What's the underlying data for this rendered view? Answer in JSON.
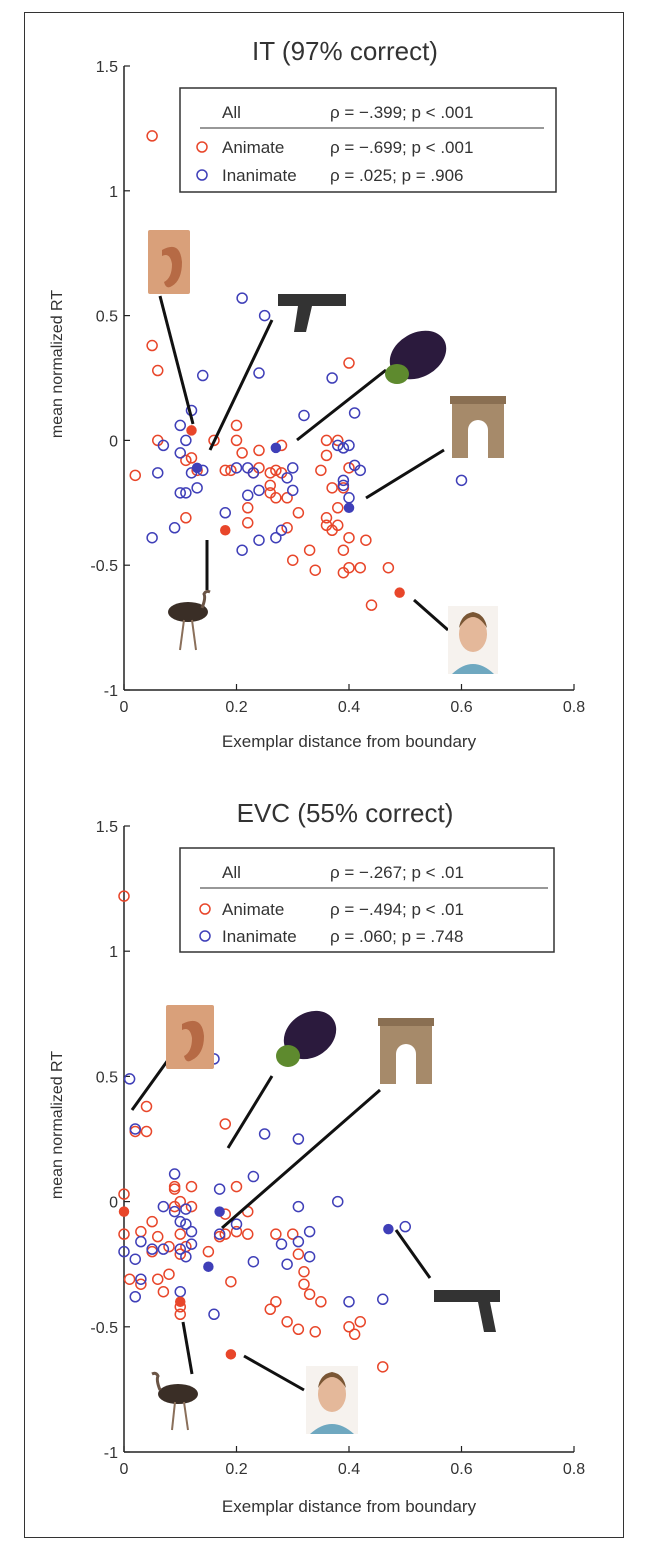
{
  "chart_data": [
    {
      "type": "scatter",
      "title": "IT (97% correct)",
      "xlabel": "Exemplar distance from boundary",
      "ylabel": "mean normalized RT",
      "xlim": [
        0,
        0.8
      ],
      "ylim": [
        -1,
        1.5
      ],
      "xticks": [
        "0",
        "0.2",
        "0.4",
        "0.6",
        "0.8"
      ],
      "yticks": [
        "1.5",
        "1",
        "0.5",
        "0",
        "-0.5",
        "-1"
      ],
      "grid": false,
      "legend": {
        "position": "top-right",
        "rows": [
          {
            "label": "All",
            "stat": "ρ = −.399; p < .001"
          },
          {
            "label": "Animate",
            "stat": "ρ = −.699; p < .001",
            "color": "#e8462a"
          },
          {
            "label": "Inanimate",
            "stat": "ρ = .025; p = .906",
            "color": "#3f3fb8"
          }
        ]
      },
      "series": [
        {
          "name": "Animate",
          "color": "#e8462a",
          "points": [
            [
              0.05,
              1.22
            ],
            [
              0.05,
              0.38
            ],
            [
              0.06,
              0.28
            ],
            [
              0.06,
              0.0
            ],
            [
              0.02,
              -0.14
            ],
            [
              0.11,
              -0.08
            ],
            [
              0.12,
              -0.07
            ],
            [
              0.11,
              -0.31
            ],
            [
              0.13,
              -0.12
            ],
            [
              0.16,
              0.0
            ],
            [
              0.18,
              -0.12
            ],
            [
              0.2,
              0.06
            ],
            [
              0.19,
              -0.12
            ],
            [
              0.2,
              0.0
            ],
            [
              0.21,
              -0.05
            ],
            [
              0.23,
              -0.13
            ],
            [
              0.22,
              -0.27
            ],
            [
              0.24,
              -0.11
            ],
            [
              0.22,
              -0.33
            ],
            [
              0.26,
              -0.13
            ],
            [
              0.26,
              -0.18
            ],
            [
              0.27,
              -0.12
            ],
            [
              0.28,
              -0.02
            ],
            [
              0.28,
              -0.13
            ],
            [
              0.27,
              -0.23
            ],
            [
              0.29,
              -0.23
            ],
            [
              0.3,
              -0.48
            ],
            [
              0.29,
              -0.35
            ],
            [
              0.31,
              -0.29
            ],
            [
              0.33,
              -0.44
            ],
            [
              0.34,
              -0.52
            ],
            [
              0.36,
              -0.34
            ],
            [
              0.36,
              -0.31
            ],
            [
              0.37,
              -0.36
            ],
            [
              0.38,
              -0.34
            ],
            [
              0.39,
              -0.44
            ],
            [
              0.4,
              -0.39
            ],
            [
              0.4,
              -0.51
            ],
            [
              0.39,
              -0.53
            ],
            [
              0.42,
              -0.51
            ],
            [
              0.43,
              -0.4
            ],
            [
              0.44,
              -0.66
            ],
            [
              0.47,
              -0.51
            ],
            [
              0.4,
              0.31
            ],
            [
              0.38,
              0.0
            ],
            [
              0.36,
              0.0
            ],
            [
              0.36,
              -0.06
            ],
            [
              0.35,
              -0.12
            ],
            [
              0.37,
              -0.19
            ],
            [
              0.39,
              -0.19
            ],
            [
              0.4,
              -0.11
            ],
            [
              0.38,
              -0.27
            ],
            [
              0.24,
              -0.04
            ],
            [
              0.26,
              -0.21
            ]
          ]
        },
        {
          "name": "Inanimate",
          "color": "#3f3fb8",
          "points": [
            [
              0.05,
              -0.39
            ],
            [
              0.06,
              -0.13
            ],
            [
              0.07,
              -0.02
            ],
            [
              0.09,
              -0.35
            ],
            [
              0.1,
              0.06
            ],
            [
              0.1,
              -0.05
            ],
            [
              0.11,
              0.0
            ],
            [
              0.1,
              -0.21
            ],
            [
              0.11,
              -0.21
            ],
            [
              0.12,
              0.12
            ],
            [
              0.12,
              -0.13
            ],
            [
              0.13,
              -0.19
            ],
            [
              0.14,
              -0.12
            ],
            [
              0.14,
              0.26
            ],
            [
              0.18,
              -0.29
            ],
            [
              0.2,
              -0.11
            ],
            [
              0.21,
              -0.44
            ],
            [
              0.22,
              -0.22
            ],
            [
              0.22,
              -0.11
            ],
            [
              0.23,
              -0.13
            ],
            [
              0.24,
              -0.4
            ],
            [
              0.24,
              -0.2
            ],
            [
              0.24,
              0.27
            ],
            [
              0.21,
              0.57
            ],
            [
              0.25,
              0.5
            ],
            [
              0.27,
              -0.39
            ],
            [
              0.28,
              -0.36
            ],
            [
              0.3,
              -0.11
            ],
            [
              0.3,
              -0.2
            ],
            [
              0.32,
              0.1
            ],
            [
              0.37,
              0.25
            ],
            [
              0.38,
              -0.02
            ],
            [
              0.39,
              -0.03
            ],
            [
              0.39,
              -0.16
            ],
            [
              0.4,
              -0.02
            ],
            [
              0.41,
              -0.1
            ],
            [
              0.42,
              -0.12
            ],
            [
              0.39,
              -0.18
            ],
            [
              0.4,
              -0.23
            ],
            [
              0.6,
              -0.16
            ],
            [
              0.41,
              0.11
            ],
            [
              0.29,
              -0.15
            ]
          ]
        },
        {
          "name": "",
          "color": "#e8462a",
          "filled": true,
          "points": [
            [
              0.12,
              0.04
            ],
            [
              0.18,
              -0.36
            ],
            [
              0.49,
              -0.61
            ]
          ]
        },
        {
          "name": "",
          "color": "#3f3fb8",
          "filled": true,
          "points": [
            [
              0.13,
              -0.11
            ],
            [
              0.27,
              -0.03
            ],
            [
              0.4,
              -0.27
            ]
          ]
        }
      ],
      "icons": [
        "ear-photo-icon",
        "pistol-photo-icon",
        "eggplant-photo-icon",
        "arch-photo-icon",
        "ostrich-photo-icon",
        "face-photo-icon"
      ]
    },
    {
      "type": "scatter",
      "title": "EVC (55% correct)",
      "xlabel": "Exemplar distance from boundary",
      "ylabel": "mean normalized RT",
      "xlim": [
        0,
        0.8
      ],
      "ylim": [
        -1,
        1.5
      ],
      "xticks": [
        "0",
        "0.2",
        "0.4",
        "0.6",
        "0.8"
      ],
      "yticks": [
        "1.5",
        "1",
        "0.5",
        "0",
        "-0.5",
        "-1"
      ],
      "grid": false,
      "legend": {
        "position": "top-right",
        "rows": [
          {
            "label": "All",
            "stat": "ρ = −.267; p < .01"
          },
          {
            "label": "Animate",
            "stat": "ρ = −.494; p < .01",
            "color": "#e8462a"
          },
          {
            "label": "Inanimate",
            "stat": "ρ = .060; p = .748",
            "color": "#3f3fb8"
          }
        ]
      },
      "series": [
        {
          "name": "Animate",
          "color": "#e8462a",
          "points": [
            [
              0.0,
              1.22
            ],
            [
              0.0,
              0.03
            ],
            [
              0.0,
              -0.13
            ],
            [
              0.01,
              -0.31
            ],
            [
              0.03,
              -0.33
            ],
            [
              0.02,
              0.28
            ],
            [
              0.04,
              0.38
            ],
            [
              0.04,
              0.28
            ],
            [
              0.03,
              -0.12
            ],
            [
              0.05,
              -0.08
            ],
            [
              0.05,
              -0.2
            ],
            [
              0.06,
              -0.14
            ],
            [
              0.06,
              -0.31
            ],
            [
              0.07,
              -0.36
            ],
            [
              0.08,
              -0.29
            ],
            [
              0.09,
              0.06
            ],
            [
              0.09,
              -0.02
            ],
            [
              0.1,
              0.0
            ],
            [
              0.1,
              -0.13
            ],
            [
              0.1,
              -0.21
            ],
            [
              0.11,
              -0.18
            ],
            [
              0.1,
              -0.42
            ],
            [
              0.12,
              0.06
            ],
            [
              0.15,
              -0.2
            ],
            [
              0.17,
              -0.14
            ],
            [
              0.18,
              0.31
            ],
            [
              0.18,
              -0.05
            ],
            [
              0.18,
              -0.13
            ],
            [
              0.19,
              -0.32
            ],
            [
              0.2,
              0.06
            ],
            [
              0.2,
              -0.12
            ],
            [
              0.22,
              -0.13
            ],
            [
              0.22,
              -0.04
            ],
            [
              0.26,
              -0.43
            ],
            [
              0.27,
              -0.4
            ],
            [
              0.27,
              -0.13
            ],
            [
              0.29,
              -0.48
            ],
            [
              0.3,
              -0.13
            ],
            [
              0.31,
              -0.21
            ],
            [
              0.31,
              -0.51
            ],
            [
              0.32,
              -0.33
            ],
            [
              0.32,
              -0.28
            ],
            [
              0.33,
              -0.37
            ],
            [
              0.34,
              -0.52
            ],
            [
              0.35,
              -0.4
            ],
            [
              0.4,
              -0.5
            ],
            [
              0.41,
              -0.53
            ],
            [
              0.42,
              -0.48
            ],
            [
              0.46,
              -0.66
            ],
            [
              0.09,
              0.05
            ],
            [
              0.12,
              -0.02
            ],
            [
              0.08,
              -0.18
            ],
            [
              0.1,
              -0.45
            ]
          ]
        },
        {
          "name": "Inanimate",
          "color": "#3f3fb8",
          "points": [
            [
              0.01,
              0.49
            ],
            [
              0.02,
              0.29
            ],
            [
              0.0,
              -0.2
            ],
            [
              0.02,
              -0.23
            ],
            [
              0.03,
              -0.16
            ],
            [
              0.02,
              -0.38
            ],
            [
              0.03,
              -0.31
            ],
            [
              0.05,
              -0.19
            ],
            [
              0.07,
              -0.02
            ],
            [
              0.07,
              -0.19
            ],
            [
              0.09,
              0.11
            ],
            [
              0.09,
              -0.04
            ],
            [
              0.1,
              -0.08
            ],
            [
              0.11,
              -0.03
            ],
            [
              0.1,
              -0.19
            ],
            [
              0.11,
              -0.22
            ],
            [
              0.1,
              -0.36
            ],
            [
              0.12,
              -0.17
            ],
            [
              0.16,
              0.57
            ],
            [
              0.16,
              -0.45
            ],
            [
              0.17,
              0.05
            ],
            [
              0.17,
              -0.13
            ],
            [
              0.2,
              -0.09
            ],
            [
              0.23,
              0.1
            ],
            [
              0.23,
              -0.24
            ],
            [
              0.25,
              0.27
            ],
            [
              0.28,
              -0.17
            ],
            [
              0.29,
              -0.25
            ],
            [
              0.31,
              0.25
            ],
            [
              0.31,
              -0.02
            ],
            [
              0.31,
              -0.16
            ],
            [
              0.33,
              -0.22
            ],
            [
              0.33,
              -0.12
            ],
            [
              0.38,
              0.0
            ],
            [
              0.4,
              -0.4
            ],
            [
              0.46,
              -0.39
            ],
            [
              0.5,
              -0.1
            ],
            [
              0.12,
              -0.12
            ],
            [
              0.11,
              -0.09
            ]
          ]
        },
        {
          "name": "",
          "color": "#e8462a",
          "filled": true,
          "points": [
            [
              0.0,
              -0.04
            ],
            [
              0.1,
              -0.4
            ],
            [
              0.19,
              -0.61
            ]
          ]
        },
        {
          "name": "",
          "color": "#3f3fb8",
          "filled": true,
          "points": [
            [
              0.17,
              -0.04
            ],
            [
              0.15,
              -0.26
            ],
            [
              0.47,
              -0.11
            ]
          ]
        }
      ],
      "icons": [
        "ear-photo-icon",
        "eggplant-photo-icon",
        "arch-photo-icon",
        "pistol-photo-icon",
        "ostrich-photo-icon",
        "face-photo-icon"
      ]
    }
  ]
}
